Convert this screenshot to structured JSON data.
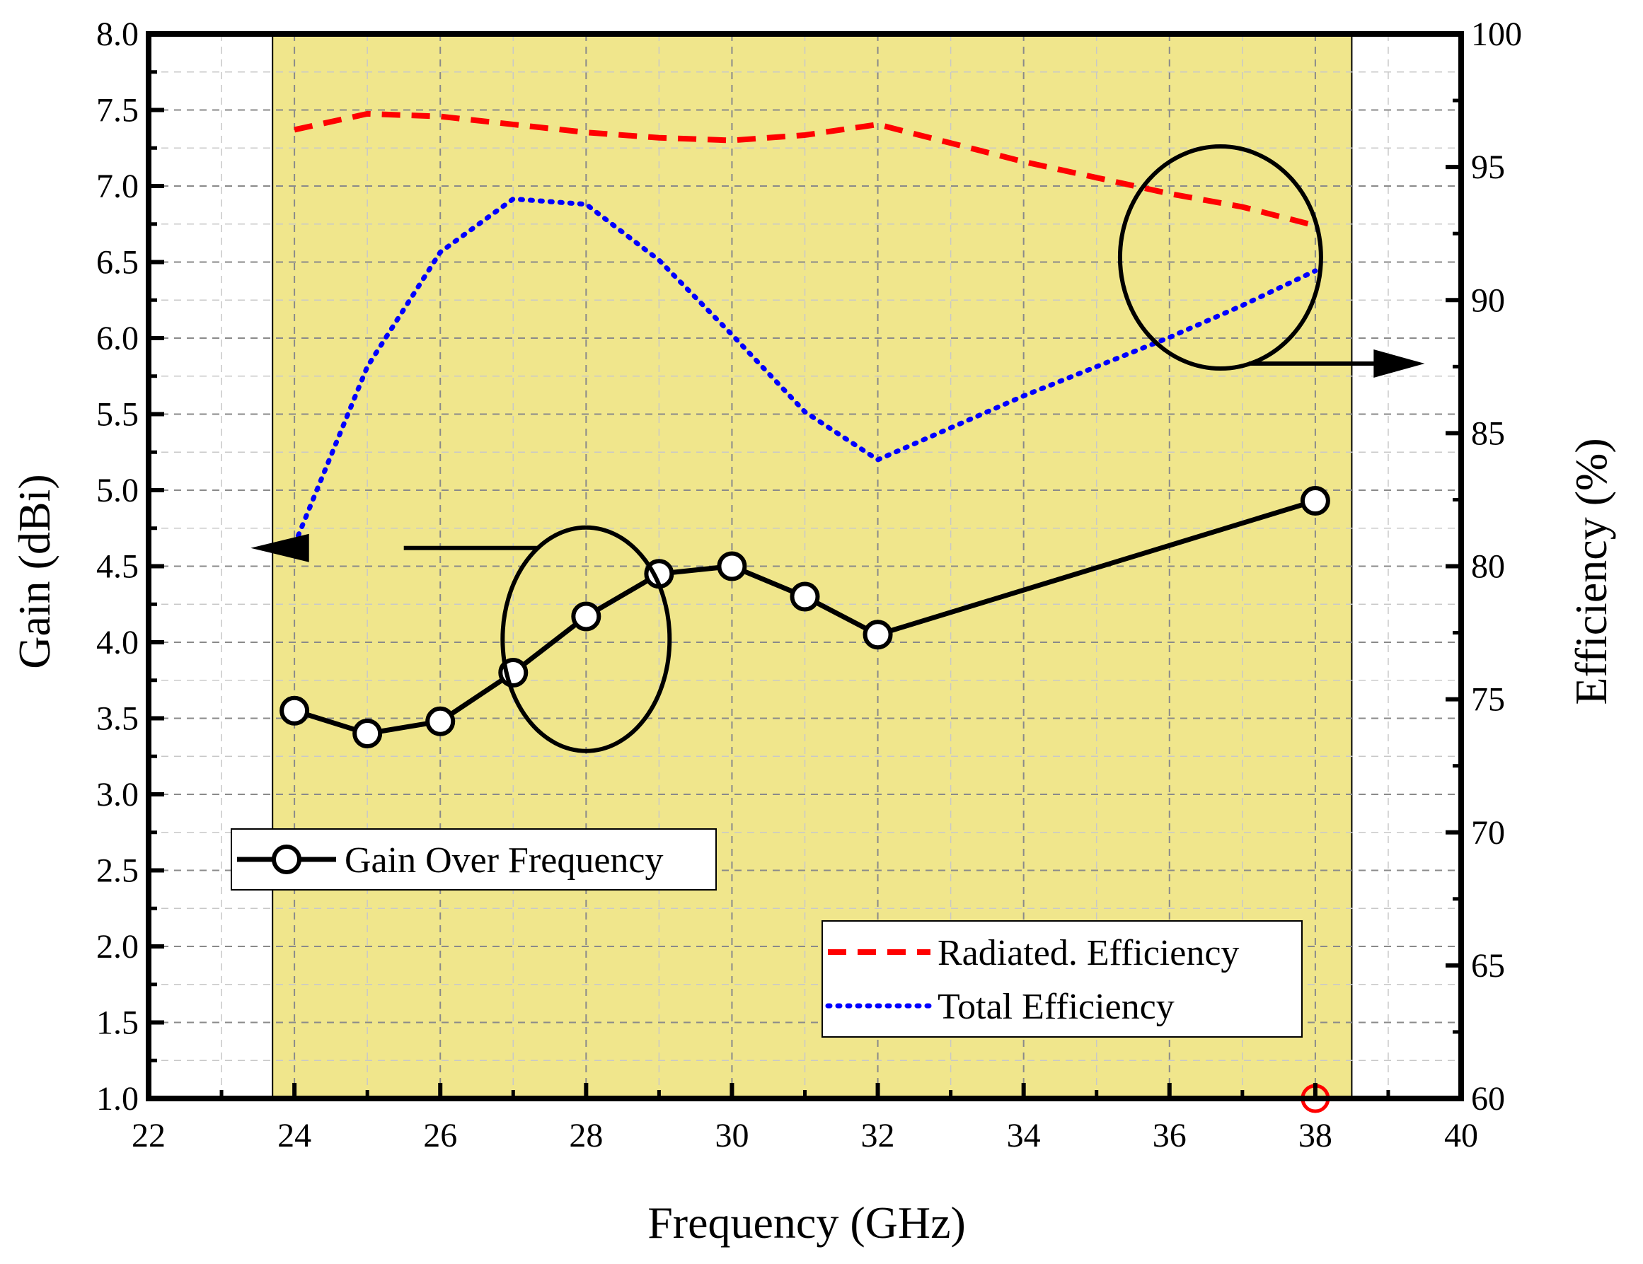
{
  "chart_data": {
    "type": "line",
    "title": "",
    "xlabel": "Frequency (GHz)",
    "ylabel_left": "Gain (dBi)",
    "ylabel_right": "Efficiency (%)",
    "xlim": [
      22,
      40
    ],
    "ylim_left": [
      1.0,
      8.0
    ],
    "ylim_right": [
      60,
      100
    ],
    "x_ticks": [
      "22",
      "24",
      "26",
      "28",
      "30",
      "32",
      "34",
      "36",
      "38",
      "40"
    ],
    "y_left_ticks": [
      "1.0",
      "1.5",
      "2.0",
      "2.5",
      "3.0",
      "3.5",
      "4.0",
      "4.5",
      "5.0",
      "5.5",
      "6.0",
      "6.5",
      "7.0",
      "7.5",
      "8.0"
    ],
    "y_right_ticks": [
      "60",
      "65",
      "70",
      "75",
      "80",
      "85",
      "90",
      "95",
      "100"
    ],
    "grid": true,
    "highlight_band": {
      "x_start": 23.7,
      "x_end": 38.5,
      "color": "#f0e68c"
    },
    "series": [
      {
        "name": "Gain Over Frequency",
        "axis": "left",
        "style": "solid-circle-markers",
        "color": "#000000",
        "x": [
          24,
          25,
          26,
          27,
          28,
          29,
          30,
          31,
          32,
          38
        ],
        "values": [
          3.55,
          3.4,
          3.48,
          3.8,
          4.17,
          4.45,
          4.5,
          4.3,
          4.05,
          4.93
        ]
      },
      {
        "name": "Radiated. Efficiency",
        "axis": "right",
        "style": "dashed",
        "color": "#ff0000",
        "x": [
          24,
          25,
          26,
          27,
          28,
          29,
          30,
          31,
          32,
          33,
          34,
          35,
          36,
          37,
          38
        ],
        "values": [
          96.4,
          97.0,
          96.9,
          96.6,
          96.3,
          96.1,
          96.0,
          96.2,
          96.6,
          95.9,
          95.2,
          94.6,
          94.0,
          93.5,
          92.8
        ]
      },
      {
        "name": "Total Efficiency",
        "axis": "right",
        "style": "dotted",
        "color": "#0000ff",
        "x": [
          24,
          25,
          26,
          27,
          28,
          29,
          30,
          31,
          32,
          33,
          34,
          35,
          36,
          37,
          38
        ],
        "values": [
          80.8,
          87.5,
          91.8,
          93.8,
          93.6,
          91.5,
          88.7,
          85.8,
          84.0,
          85.2,
          86.4,
          87.5,
          88.6,
          89.8,
          91.1
        ]
      }
    ],
    "annotations": [
      {
        "type": "ellipse",
        "target": "Gain Over Frequency",
        "cx": 28.0,
        "cy_left": 4.02,
        "arrow": "left"
      },
      {
        "type": "ellipse",
        "target": "efficiency curves",
        "cx": 36.7,
        "cy_right": 91.6,
        "arrow": "right"
      }
    ],
    "legends": [
      {
        "entries": [
          "Gain Over Frequency"
        ],
        "location": "middle-left"
      },
      {
        "entries": [
          "Radiated. Efficiency",
          "Total Efficiency"
        ],
        "location": "bottom-right"
      }
    ]
  }
}
